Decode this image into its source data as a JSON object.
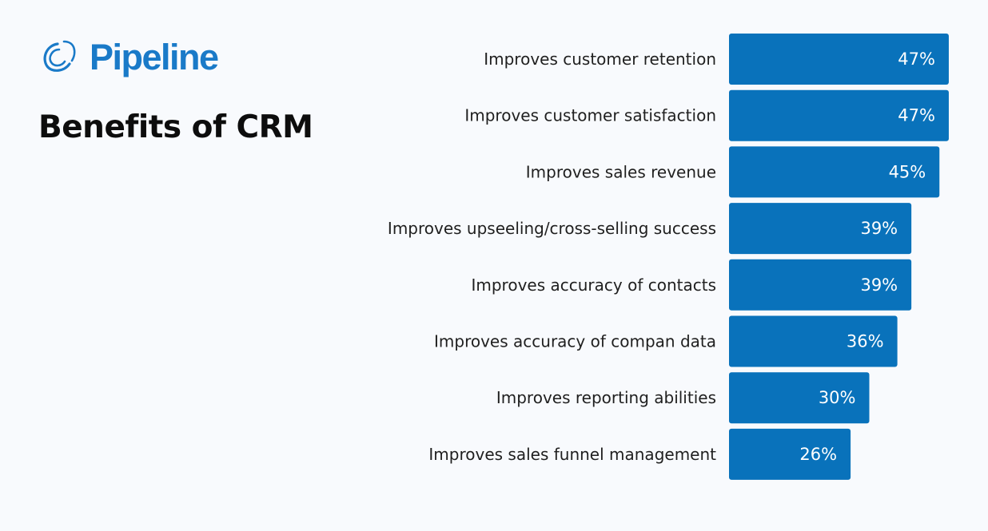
{
  "brand": {
    "name": "Pipeline",
    "color": "#1a7ac8",
    "icon": "swirl-logo-icon"
  },
  "title": "Benefits of CRM",
  "colors": {
    "bar": "#0972bb",
    "category_text": "#1f1f1f",
    "value_text": "#ffffff",
    "background": "#f8fafd"
  },
  "chart_data": {
    "type": "bar",
    "orientation": "horizontal",
    "title": "Benefits of CRM",
    "xlabel": "",
    "ylabel": "",
    "unit": "%",
    "xlim": [
      0,
      50
    ],
    "grid": false,
    "legend": "none",
    "categories": [
      "Improves customer retention",
      "Improves customer satisfaction",
      "Improves sales revenue",
      "Improves upseeling/cross-selling success",
      "Improves accuracy of contacts",
      "Improves accuracy of compan data",
      "Improves reporting abilities",
      "Improves sales funnel management"
    ],
    "values": [
      47,
      47,
      45,
      39,
      39,
      36,
      30,
      26
    ],
    "labels": [
      "47%",
      "47%",
      "45%",
      "39%",
      "39%",
      "36%",
      "30%",
      "26%"
    ]
  }
}
